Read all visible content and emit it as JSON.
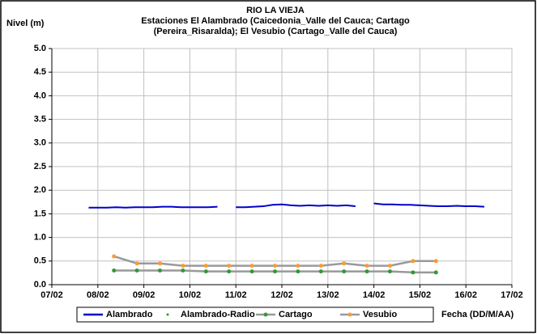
{
  "chart_data": {
    "type": "line",
    "title": [
      "RIO LA VIEJA",
      "Estaciones El Alambrado (Caicedonia_Valle del Cauca; Cartago",
      "(Pereira_Risaralda);  El Vesubio (Cartago_Valle del Cauca)"
    ],
    "y_label": "Nivel (m)",
    "x_label": "Fecha (DD/M/AA)",
    "xlim": [
      7,
      17
    ],
    "xticks": [
      {
        "value": 7,
        "label": "07/02"
      },
      {
        "value": 8,
        "label": "08/02"
      },
      {
        "value": 9,
        "label": "09/02"
      },
      {
        "value": 10,
        "label": "10/02"
      },
      {
        "value": 11,
        "label": "11/02"
      },
      {
        "value": 12,
        "label": "12/02"
      },
      {
        "value": 13,
        "label": "13/02"
      },
      {
        "value": 14,
        "label": "14/02"
      },
      {
        "value": 15,
        "label": "15/02"
      },
      {
        "value": 16,
        "label": "16/02"
      },
      {
        "value": 17,
        "label": "17/02"
      }
    ],
    "ylim": [
      0,
      5
    ],
    "yticks": [
      {
        "value": 0,
        "label": "0.0"
      },
      {
        "value": 0.5,
        "label": "0.5"
      },
      {
        "value": 1,
        "label": "1.0"
      },
      {
        "value": 1.5,
        "label": "1.5"
      },
      {
        "value": 2,
        "label": "2.0"
      },
      {
        "value": 2.5,
        "label": "2.5"
      },
      {
        "value": 3,
        "label": "3.0"
      },
      {
        "value": 3.5,
        "label": "3.5"
      },
      {
        "value": 4,
        "label": "4.0"
      },
      {
        "value": 4.5,
        "label": "4.5"
      },
      {
        "value": 5,
        "label": "5.0"
      }
    ],
    "grid": true,
    "legend": "bottom",
    "series": [
      {
        "name": "Alambrado",
        "color": "#0000cc",
        "line_color": "#0000cc",
        "marker": false,
        "x": [
          7.8,
          8.0,
          8.2,
          8.4,
          8.6,
          8.8,
          9.0,
          9.2,
          9.4,
          9.6,
          9.8,
          10.0,
          10.2,
          10.4,
          10.6,
          10.8,
          11.0,
          11.2,
          11.4,
          11.6,
          11.8,
          12.0,
          12.2,
          12.4,
          12.6,
          12.8,
          13.0,
          13.2,
          13.4,
          13.6,
          13.8,
          14.0,
          14.2,
          14.4,
          14.6,
          14.8,
          15.0,
          15.2,
          15.4,
          15.6,
          15.8,
          16.0,
          16.2,
          16.4
        ],
        "values": [
          1.63,
          1.63,
          1.63,
          1.64,
          1.63,
          1.64,
          1.64,
          1.64,
          1.65,
          1.65,
          1.64,
          1.64,
          1.64,
          1.64,
          1.65,
          null,
          1.64,
          1.64,
          1.65,
          1.66,
          1.69,
          1.7,
          1.68,
          1.67,
          1.68,
          1.67,
          1.68,
          1.67,
          1.68,
          1.66,
          null,
          1.72,
          1.7,
          1.7,
          1.69,
          1.69,
          1.68,
          1.67,
          1.66,
          1.66,
          1.67,
          1.66,
          1.66,
          1.65
        ]
      },
      {
        "name": "Alambrado-Radio",
        "color": "#339933",
        "line_color": "none",
        "marker": true,
        "x": [],
        "values": []
      },
      {
        "name": "Cartago",
        "color": "#339933",
        "line_color": "#999999",
        "marker": true,
        "x": [
          8.35,
          8.85,
          9.35,
          9.85,
          10.35,
          10.85,
          11.35,
          11.85,
          12.35,
          12.85,
          13.35,
          13.85,
          14.35,
          14.85,
          15.35
        ],
        "values": [
          0.3,
          0.3,
          0.3,
          0.3,
          0.28,
          0.28,
          0.28,
          0.28,
          0.28,
          0.28,
          0.28,
          0.28,
          0.28,
          0.26,
          0.26
        ]
      },
      {
        "name": "Vesubio",
        "color": "#ff9933",
        "line_color": "#999999",
        "marker": true,
        "x": [
          8.35,
          8.85,
          9.35,
          9.85,
          10.35,
          10.85,
          11.35,
          11.85,
          12.35,
          12.85,
          13.35,
          13.85,
          14.35,
          14.85,
          15.35
        ],
        "values": [
          0.6,
          0.45,
          0.45,
          0.4,
          0.4,
          0.4,
          0.4,
          0.4,
          0.4,
          0.4,
          0.45,
          0.4,
          0.4,
          0.5,
          0.5
        ]
      }
    ]
  }
}
